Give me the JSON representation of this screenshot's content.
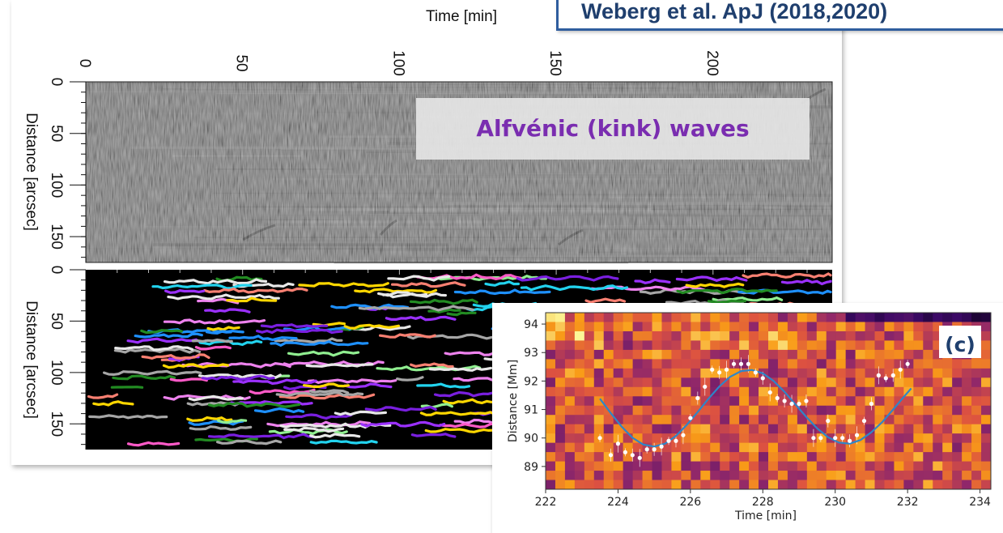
{
  "figure": {
    "citation": "Weberg et al. ApJ (2018,2020)",
    "wave_label": "Alfvénic (kink) waves",
    "panel_letter": "(c)"
  },
  "chart_data": [
    {
      "type": "heatmap",
      "title": "",
      "xlabel": "Time [min]",
      "ylabel": "Distance [arcsec]",
      "xlim": [
        0,
        238
      ],
      "ylim": [
        0,
        175
      ],
      "x_ticks": [
        "0",
        "50",
        "100",
        "150",
        "200"
      ],
      "y_ticks": [
        "0",
        "50",
        "100",
        "150"
      ],
      "colormap": "grayscale",
      "grid": false
    },
    {
      "type": "scatter",
      "title": "",
      "xlabel": "Time [min]",
      "ylabel": "Distance [arcsec]",
      "xlim": [
        0,
        238
      ],
      "ylim": [
        0,
        175
      ],
      "x_ticks": [],
      "y_ticks": [
        "0",
        "50",
        "100",
        "150"
      ],
      "background": "#000000",
      "track_colors": [
        "#e8e8e8",
        "#ff5ac8",
        "#9b30ff",
        "#22d3ee",
        "#ffd700",
        "#228b22",
        "#1e90ff",
        "#a6a6a6",
        "#ee82ee",
        "#fa8072",
        "#90ee90",
        "#7a1fe0"
      ],
      "grid": false
    },
    {
      "type": "scatter",
      "title": "",
      "xlabel": "Time [min]",
      "ylabel": "Distance [Mm]",
      "xlim": [
        222,
        234.3
      ],
      "ylim": [
        88.2,
        94.4
      ],
      "x_ticks": [
        "222",
        "224",
        "226",
        "228",
        "230",
        "232",
        "234"
      ],
      "y_ticks": [
        "89",
        "90",
        "91",
        "92",
        "93",
        "94"
      ],
      "colormap": "inferno",
      "grid": false,
      "series": [
        {
          "kind": "points",
          "x": [
            223.5,
            223.8,
            224.0,
            224.2,
            224.4,
            224.6,
            224.8,
            225.0,
            225.2,
            225.4,
            225.6,
            225.8,
            226.0,
            226.2,
            226.4,
            226.6,
            226.8,
            227.0,
            227.2,
            227.4,
            227.6,
            227.8,
            228.0,
            228.2,
            228.4,
            228.6,
            228.8,
            229.0,
            229.2,
            229.4,
            229.6,
            229.8,
            230.0,
            230.2,
            230.4,
            230.6,
            230.8,
            231.0,
            231.2,
            231.4,
            231.6,
            231.8,
            232.0
          ],
          "y": [
            90.0,
            89.4,
            89.8,
            89.5,
            89.4,
            89.3,
            89.6,
            89.6,
            89.7,
            89.9,
            89.9,
            90.1,
            90.7,
            91.4,
            91.8,
            92.4,
            92.3,
            92.4,
            92.6,
            92.6,
            92.6,
            92.3,
            92.1,
            91.6,
            91.4,
            91.3,
            91.2,
            91.2,
            91.3,
            90.0,
            90.0,
            90.6,
            90.0,
            90.0,
            89.9,
            90.1,
            90.6,
            91.2,
            92.2,
            92.1,
            92.2,
            92.4,
            92.6
          ]
        },
        {
          "kind": "line",
          "fit": "sinusoid",
          "x": [
            223.5,
            223.8,
            224.1,
            224.4,
            224.7,
            225.0,
            225.3,
            225.6,
            225.9,
            226.2,
            226.5,
            226.8,
            227.1,
            227.4,
            227.7,
            228.0,
            228.3,
            228.6,
            228.9,
            229.2,
            229.5,
            229.8,
            230.1,
            230.4,
            230.7,
            231.0,
            231.3,
            231.6,
            231.9,
            232.1
          ],
          "y": [
            91.38,
            90.87,
            90.4,
            90.01,
            89.77,
            89.7,
            89.8,
            90.07,
            90.46,
            90.91,
            91.38,
            91.81,
            92.15,
            92.35,
            92.39,
            92.27,
            92.0,
            91.62,
            91.18,
            90.74,
            90.34,
            90.03,
            89.84,
            89.8,
            89.93,
            90.2,
            90.56,
            91.0,
            91.45,
            91.74
          ]
        }
      ]
    }
  ]
}
